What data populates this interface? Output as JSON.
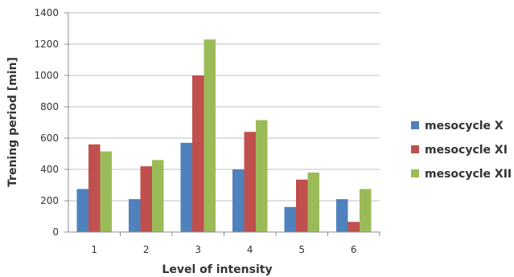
{
  "chart_data": {
    "type": "bar",
    "title": "",
    "xlabel": "Level of intensity",
    "ylabel": "Trening period [min]",
    "categories": [
      "1",
      "2",
      "3",
      "4",
      "5",
      "6"
    ],
    "series": [
      {
        "name": "mesocycle X",
        "color": "#4F81BD",
        "values": [
          275,
          210,
          570,
          400,
          160,
          210
        ]
      },
      {
        "name": "mesocycle XI",
        "color": "#C0504D",
        "values": [
          560,
          420,
          1000,
          640,
          335,
          65
        ]
      },
      {
        "name": "mesocycle XII",
        "color": "#9BBB59",
        "values": [
          515,
          460,
          1230,
          715,
          380,
          275
        ]
      }
    ],
    "ylim": [
      0,
      1400
    ],
    "yticks": [
      0,
      200,
      400,
      600,
      800,
      1000,
      1200,
      1400
    ],
    "grid": true,
    "legend": "right"
  }
}
